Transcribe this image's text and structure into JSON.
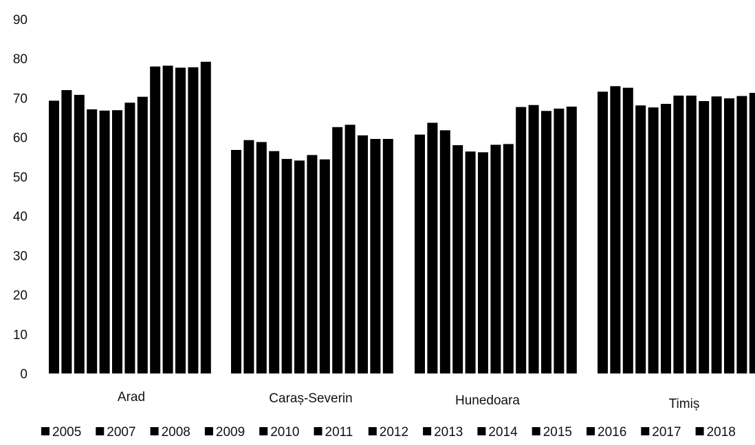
{
  "chart_data": {
    "type": "bar",
    "categories": [
      "Arad",
      "Caraș-Severin",
      "Hunedoara",
      "Timiș"
    ],
    "series": [
      {
        "name": "2005",
        "values": [
          69.3,
          56.8,
          60.7,
          71.6
        ]
      },
      {
        "name": "2007",
        "values": [
          72.0,
          59.3,
          63.7,
          73.0
        ]
      },
      {
        "name": "2008",
        "values": [
          70.8,
          58.8,
          61.8,
          72.6
        ]
      },
      {
        "name": "2009",
        "values": [
          67.1,
          56.5,
          58.0,
          68.1
        ]
      },
      {
        "name": "2010",
        "values": [
          66.8,
          54.5,
          56.4,
          67.6
        ]
      },
      {
        "name": "2011",
        "values": [
          66.9,
          54.1,
          56.2,
          68.5
        ]
      },
      {
        "name": "2012",
        "values": [
          68.8,
          55.5,
          58.1,
          70.6
        ]
      },
      {
        "name": "2013",
        "values": [
          70.3,
          54.4,
          58.3,
          70.6
        ]
      },
      {
        "name": "2014",
        "values": [
          78.0,
          62.6,
          67.7,
          69.2
        ]
      },
      {
        "name": "2015",
        "values": [
          78.2,
          63.2,
          68.2,
          70.4
        ]
      },
      {
        "name": "2016",
        "values": [
          77.7,
          60.5,
          66.7,
          69.9
        ]
      },
      {
        "name": "2017",
        "values": [
          77.8,
          59.6,
          67.3,
          70.5
        ]
      },
      {
        "name": "2018",
        "values": [
          79.2,
          59.6,
          67.8,
          71.3
        ]
      }
    ],
    "ylim": [
      0,
      90
    ],
    "yticks": [
      "0",
      "10",
      "20",
      "30",
      "40",
      "50",
      "60",
      "70",
      "80",
      "90"
    ],
    "grid": false,
    "legend_position": "bottom",
    "bar_color": "#000000"
  }
}
